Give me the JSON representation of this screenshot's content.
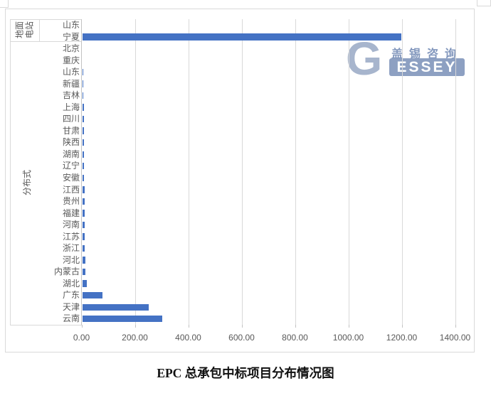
{
  "chart_data": {
    "type": "bar",
    "orientation": "horizontal",
    "title": "EPC 总承包中标项目分布情况图",
    "group_labels": [
      {
        "label": "地面电站",
        "start": 0,
        "end": 2
      },
      {
        "label": "分布式",
        "start": 2,
        "end": 26
      }
    ],
    "categories": [
      "山东",
      "宁夏",
      "北京",
      "重庆",
      "山东",
      "新疆",
      "吉林",
      "上海",
      "四川",
      "甘肃",
      "陕西",
      "湖南",
      "辽宁",
      "安徽",
      "江西",
      "贵州",
      "福建",
      "河南",
      "江苏",
      "浙江",
      "河北",
      "内蒙古",
      "湖北",
      "广东",
      "天津",
      "云南"
    ],
    "values": [
      0,
      1195,
      0,
      0,
      5,
      5,
      5,
      6,
      6,
      6,
      6,
      6,
      7,
      7,
      8,
      8,
      8,
      9,
      10,
      10,
      12,
      13,
      18,
      75,
      250,
      300
    ],
    "xlabel": "",
    "ylabel": "",
    "xlim": [
      0,
      1400
    ],
    "x_ticks": [
      "0.00",
      "200.00",
      "400.00",
      "600.00",
      "800.00",
      "1000.00",
      "1200.00",
      "1400.00"
    ],
    "grid": true,
    "legend": "none",
    "bar_color": "#4472c4"
  },
  "watermark": {
    "logo_initial": "G",
    "company_cn": "盖锡咨询",
    "company_en_rest": "ESSEY"
  }
}
